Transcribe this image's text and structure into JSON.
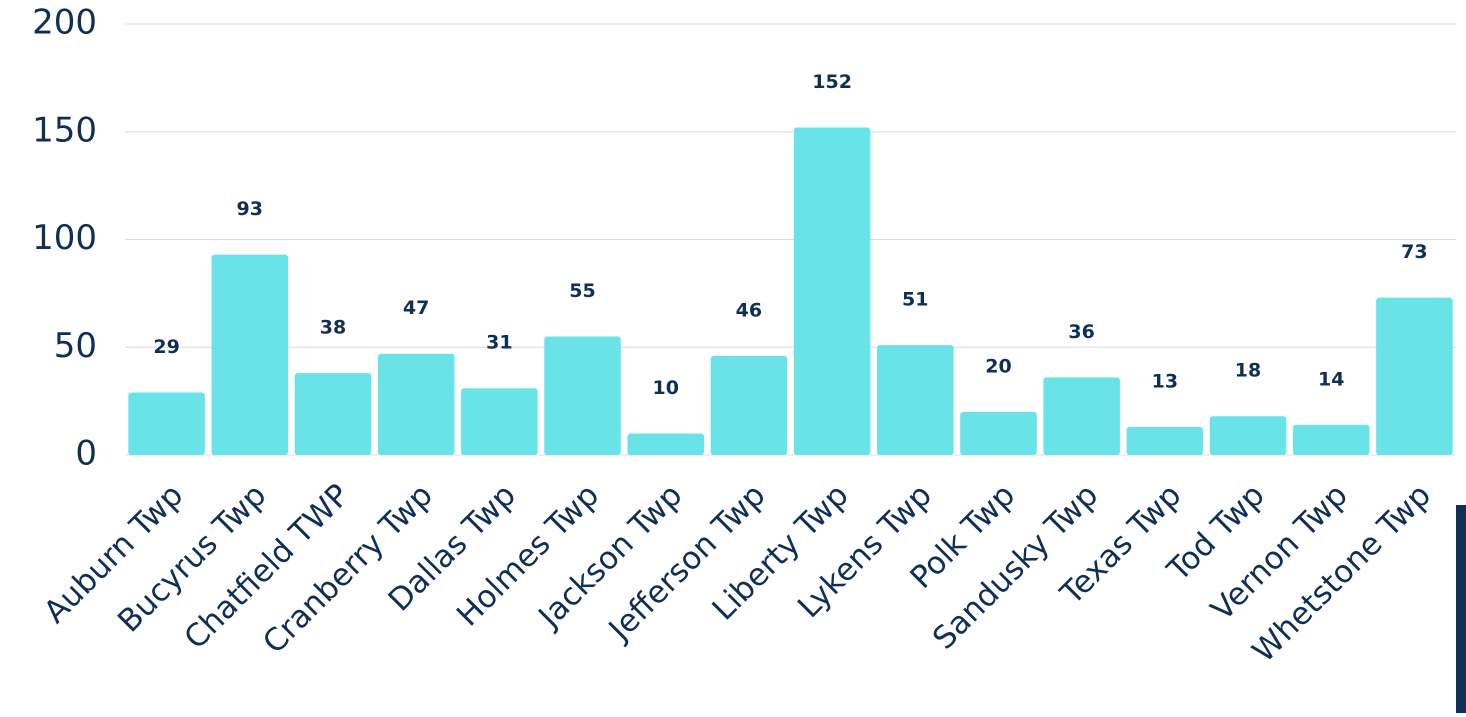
{
  "chart_data": {
    "type": "bar",
    "categories": [
      "Auburn Twp",
      "Bucyrus Twp",
      "Chatfield TWP",
      "Cranberry Twp",
      "Dallas Twp",
      "Holmes Twp",
      "Jackson Twp",
      "Jefferson Twp",
      "Liberty Twp",
      "Lykens Twp",
      "Polk Twp",
      "Sandusky Twp",
      "Texas Twp",
      "Tod Twp",
      "Vernon Twp",
      "Whetstone Twp"
    ],
    "values": [
      29,
      93,
      38,
      47,
      31,
      55,
      10,
      46,
      152,
      51,
      20,
      36,
      13,
      18,
      14,
      73
    ],
    "color": "#6ae3e8",
    "ylim": [
      0,
      200
    ],
    "yticks": [
      0,
      50,
      100,
      150,
      200
    ],
    "grid": true
  }
}
